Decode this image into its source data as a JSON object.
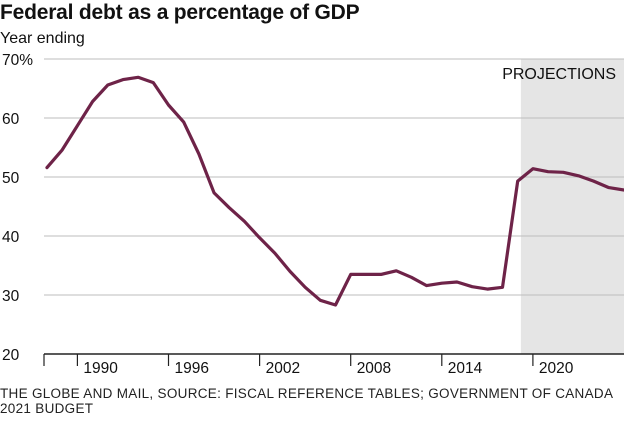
{
  "chart_data": {
    "type": "line",
    "title": "Federal debt as a percentage of GDP",
    "subtitle": "Year ending",
    "source": "THE GLOBE AND MAIL, SOURCE: FISCAL REFERENCE TABLES; GOVERNMENT OF CANADA 2021 BUDGET",
    "projection_label": "PROJECTIONS",
    "projection_start": 2020,
    "ylim": [
      20,
      70
    ],
    "xlim": [
      1987.8,
      2026
    ],
    "y_ticks": [
      20,
      30,
      40,
      50,
      60,
      70
    ],
    "y_tick_labels": [
      "20",
      "30",
      "40",
      "50",
      "60",
      "70%"
    ],
    "x_ticks": [
      1990,
      1996,
      2002,
      2008,
      2014,
      2020
    ],
    "x_tick_labels": [
      "1990",
      "1996",
      "2002",
      "2008",
      "2014",
      "2020"
    ],
    "grid": "horizontal",
    "line_color": "#6e2348",
    "projection_color": "#e5e5e5",
    "series": [
      {
        "x": [
          1988,
          1989,
          1990,
          1991,
          1992,
          1993,
          1994,
          1995,
          1996,
          1997,
          1998,
          1999,
          2000,
          2001,
          2002,
          2003,
          2004,
          2005,
          2006,
          2007,
          2008,
          2009,
          2010,
          2011,
          2012,
          2013,
          2014,
          2015,
          2016,
          2017,
          2018,
          2019,
          2020,
          2021,
          2022,
          2023,
          2024,
          2025,
          2026
        ],
        "values": [
          51.6,
          54.6,
          58.7,
          62.8,
          65.6,
          66.5,
          66.9,
          66.0,
          62.2,
          59.3,
          53.9,
          47.3,
          44.8,
          42.5,
          39.7,
          37.1,
          34.0,
          31.3,
          29.1,
          28.3,
          33.5,
          33.5,
          33.5,
          34.1,
          33.0,
          31.6,
          32.0,
          32.2,
          31.4,
          31.0,
          31.3,
          49.3,
          51.4,
          50.9,
          50.8,
          50.2,
          49.3,
          48.2,
          47.8
        ]
      }
    ]
  }
}
